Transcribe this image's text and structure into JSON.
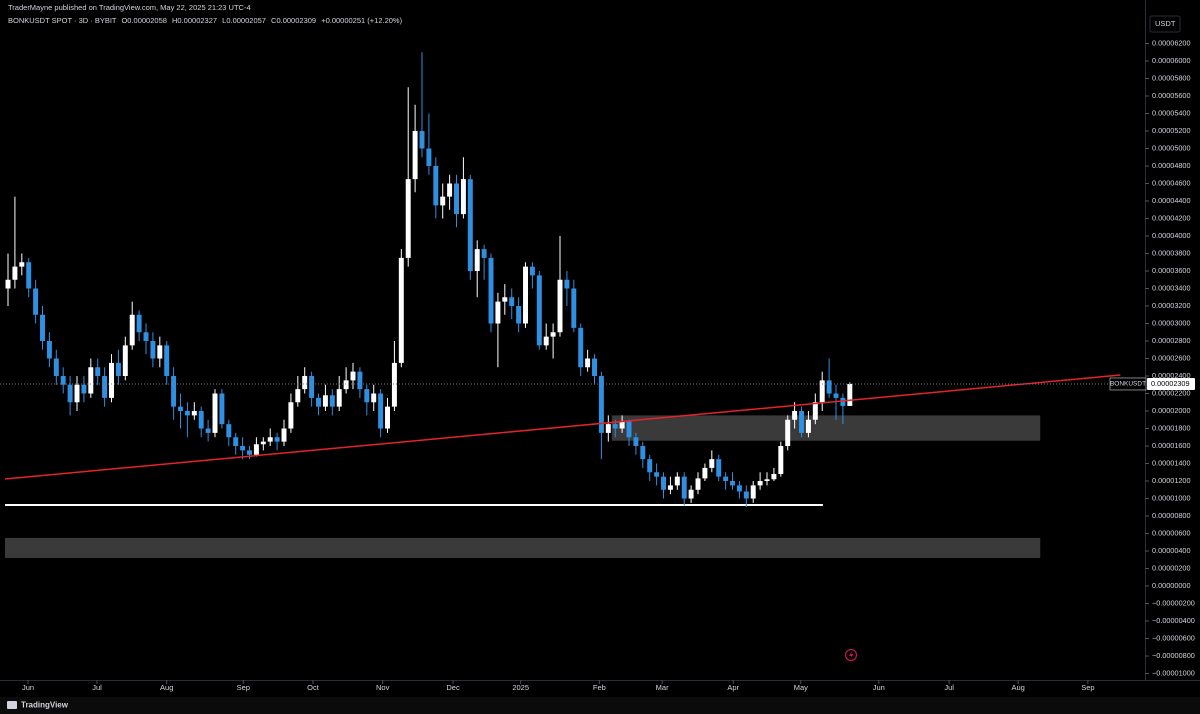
{
  "header": {
    "byline": "TraderMayne published on TradingView.com, May 22, 2025 21:23 UTC-4",
    "symbol": "BONKUSDT SPOT · 3D · BYBIT",
    "open": "O0.00002058",
    "high": "H0.00002327",
    "low": "L0.00002057",
    "close": "C0.00002309",
    "change": "+0.00000251 (+12.20%)"
  },
  "currency": "USDT",
  "footer": {
    "brand": "TradingView"
  },
  "chart_data": {
    "type": "candlestick",
    "up_color": "#ffffff",
    "down_color": "#2f8fe0",
    "symbol_label": "BONKUSDT",
    "last_price_label": "0.00002309",
    "last_price": 2.309e-05,
    "xlim": [
      -1.16,
      164.78
    ],
    "ylim": [
      -1.074e-05,
      6.697e-05
    ],
    "xticks": [
      {
        "value": 2.9,
        "label": "Jun"
      },
      {
        "value": 12.9,
        "label": "Jul"
      },
      {
        "value": 23.0,
        "label": "Aug"
      },
      {
        "value": 34.1,
        "label": "Sep"
      },
      {
        "value": 44.2,
        "label": "Oct"
      },
      {
        "value": 54.3,
        "label": "Nov"
      },
      {
        "value": 64.5,
        "label": "Dec"
      },
      {
        "value": 74.3,
        "label": "2025"
      },
      {
        "value": 85.7,
        "label": "Feb"
      },
      {
        "value": 94.8,
        "label": "Mar"
      },
      {
        "value": 105.1,
        "label": "Apr"
      },
      {
        "value": 114.9,
        "label": "May"
      },
      {
        "value": 126.2,
        "label": "Jun"
      },
      {
        "value": 136.4,
        "label": "Jul"
      },
      {
        "value": 146.4,
        "label": "Aug"
      },
      {
        "value": 156.5,
        "label": "Sep"
      }
    ],
    "yticks": [
      {
        "value": 6.2e-05,
        "label": "0.00006200"
      },
      {
        "value": 6e-05,
        "label": "0.00006000"
      },
      {
        "value": 5.8e-05,
        "label": "0.00005800"
      },
      {
        "value": 5.6e-05,
        "label": "0.00005600"
      },
      {
        "value": 5.4e-05,
        "label": "0.00005400"
      },
      {
        "value": 5.2e-05,
        "label": "0.00005200"
      },
      {
        "value": 5e-05,
        "label": "0.00005000"
      },
      {
        "value": 4.8e-05,
        "label": "0.00004800"
      },
      {
        "value": 4.6e-05,
        "label": "0.00004600"
      },
      {
        "value": 4.4e-05,
        "label": "0.00004400"
      },
      {
        "value": 4.2e-05,
        "label": "0.00004200"
      },
      {
        "value": 4e-05,
        "label": "0.00004000"
      },
      {
        "value": 3.8e-05,
        "label": "0.00003800"
      },
      {
        "value": 3.6e-05,
        "label": "0.00003600"
      },
      {
        "value": 3.4e-05,
        "label": "0.00003400"
      },
      {
        "value": 3.2e-05,
        "label": "0.00003200"
      },
      {
        "value": 3e-05,
        "label": "0.00003000"
      },
      {
        "value": 2.8e-05,
        "label": "0.00002800"
      },
      {
        "value": 2.6e-05,
        "label": "0.00002600"
      },
      {
        "value": 2.4e-05,
        "label": "0.00002400"
      },
      {
        "value": 2.2e-05,
        "label": "0.00002200"
      },
      {
        "value": 2e-05,
        "label": "0.00002000"
      },
      {
        "value": 1.8e-05,
        "label": "0.00001800"
      },
      {
        "value": 1.6e-05,
        "label": "0.00001600"
      },
      {
        "value": 1.4e-05,
        "label": "0.00001400"
      },
      {
        "value": 1.2e-05,
        "label": "0.00001200"
      },
      {
        "value": 1e-05,
        "label": "0.00001000"
      },
      {
        "value": 8e-06,
        "label": "0.00000800"
      },
      {
        "value": 6e-06,
        "label": "0.00000600"
      },
      {
        "value": 4e-06,
        "label": "0.00000400"
      },
      {
        "value": 2e-06,
        "label": "0.00000200"
      },
      {
        "value": 0,
        "label": "0.00000000"
      },
      {
        "value": -2e-06,
        "label": "−0.00000200"
      },
      {
        "value": -4e-06,
        "label": "−0.00000400"
      },
      {
        "value": -6e-06,
        "label": "−0.00000600"
      },
      {
        "value": -8e-06,
        "label": "−0.00000800"
      },
      {
        "value": -1e-05,
        "label": "−0.00001000"
      }
    ],
    "candles": [
      [
        3.4e-05,
        3.8e-05,
        3.2e-05,
        3.5e-05
      ],
      [
        3.5e-05,
        4.45e-05,
        3.4e-05,
        3.65e-05
      ],
      [
        3.65e-05,
        3.8e-05,
        3.55e-05,
        3.7e-05
      ],
      [
        3.7e-05,
        3.75e-05,
        3.3e-05,
        3.4e-05
      ],
      [
        3.4e-05,
        3.5e-05,
        3e-05,
        3.1e-05
      ],
      [
        3.1e-05,
        3.2e-05,
        2.7e-05,
        2.8e-05
      ],
      [
        2.8e-05,
        2.9e-05,
        2.5e-05,
        2.6e-05
      ],
      [
        2.6e-05,
        2.7e-05,
        2.3e-05,
        2.4e-05
      ],
      [
        2.4e-05,
        2.5e-05,
        2.2e-05,
        2.3e-05
      ],
      [
        2.3e-05,
        2.4e-05,
        1.95e-05,
        2.1e-05
      ],
      [
        2.1e-05,
        2.4e-05,
        2e-05,
        2.3e-05
      ],
      [
        2.3e-05,
        2.4e-05,
        2.1e-05,
        2.2e-05
      ],
      [
        2.2e-05,
        2.6e-05,
        2.15e-05,
        2.5e-05
      ],
      [
        2.5e-05,
        2.6e-05,
        2.3e-05,
        2.4e-05
      ],
      [
        2.4e-05,
        2.5e-05,
        2.05e-05,
        2.15e-05
      ],
      [
        2.15e-05,
        2.65e-05,
        2.1e-05,
        2.55e-05
      ],
      [
        2.55e-05,
        2.7e-05,
        2.3e-05,
        2.4e-05
      ],
      [
        2.4e-05,
        2.85e-05,
        2.35e-05,
        2.75e-05
      ],
      [
        2.75e-05,
        3.25e-05,
        2.7e-05,
        3.1e-05
      ],
      [
        3.1e-05,
        3.15e-05,
        2.8e-05,
        2.9e-05
      ],
      [
        2.9e-05,
        3e-05,
        2.65e-05,
        2.8e-05
      ],
      [
        2.8e-05,
        2.9e-05,
        2.5e-05,
        2.6e-05
      ],
      [
        2.6e-05,
        2.85e-05,
        2.5e-05,
        2.75e-05
      ],
      [
        2.75e-05,
        2.8e-05,
        2.3e-05,
        2.4e-05
      ],
      [
        2.4e-05,
        2.5e-05,
        1.9e-05,
        2.05e-05
      ],
      [
        2.05e-05,
        2.2e-05,
        1.8e-05,
        2e-05
      ],
      [
        2e-05,
        2.1e-05,
        1.7e-05,
        1.95e-05
      ],
      [
        1.95e-05,
        2.1e-05,
        1.9e-05,
        2e-05
      ],
      [
        2e-05,
        2.05e-05,
        1.7e-05,
        1.8e-05
      ],
      [
        1.8e-05,
        1.9e-05,
        1.65e-05,
        1.75e-05
      ],
      [
        1.75e-05,
        2.25e-05,
        1.7e-05,
        2.2e-05
      ],
      [
        2.2e-05,
        2.25e-05,
        1.8e-05,
        1.85e-05
      ],
      [
        1.85e-05,
        1.9e-05,
        1.6e-05,
        1.7e-05
      ],
      [
        1.7e-05,
        1.75e-05,
        1.5e-05,
        1.6e-05
      ],
      [
        1.6e-05,
        1.7e-05,
        1.45e-05,
        1.55e-05
      ],
      [
        1.55e-05,
        1.6e-05,
        1.45e-05,
        1.5e-05
      ],
      [
        1.5e-05,
        1.7e-05,
        1.48e-05,
        1.62e-05
      ],
      [
        1.62e-05,
        1.7e-05,
        1.55e-05,
        1.65e-05
      ],
      [
        1.65e-05,
        1.8e-05,
        1.6e-05,
        1.7e-05
      ],
      [
        1.7e-05,
        1.75e-05,
        1.55e-05,
        1.65e-05
      ],
      [
        1.65e-05,
        1.9e-05,
        1.6e-05,
        1.8e-05
      ],
      [
        1.8e-05,
        2.2e-05,
        1.75e-05,
        2.1e-05
      ],
      [
        2.1e-05,
        2.4e-05,
        2.05e-05,
        2.25e-05
      ],
      [
        2.25e-05,
        2.5e-05,
        2.2e-05,
        2.4e-05
      ],
      [
        2.4e-05,
        2.45e-05,
        2.05e-05,
        2.15e-05
      ],
      [
        2.15e-05,
        2.2e-05,
        1.95e-05,
        2.05e-05
      ],
      [
        2.05e-05,
        2.3e-05,
        2e-05,
        2.18e-05
      ],
      [
        2.18e-05,
        2.25e-05,
        1.95e-05,
        2.05e-05
      ],
      [
        2.05e-05,
        2.4e-05,
        2e-05,
        2.25e-05
      ],
      [
        2.25e-05,
        2.5e-05,
        2.2e-05,
        2.35e-05
      ],
      [
        2.35e-05,
        2.55e-05,
        2.25e-05,
        2.45e-05
      ],
      [
        2.45e-05,
        2.5e-05,
        2.15e-05,
        2.25e-05
      ],
      [
        2.25e-05,
        2.3e-05,
        1.95e-05,
        2.1e-05
      ],
      [
        2.1e-05,
        2.3e-05,
        2e-05,
        2.2e-05
      ],
      [
        2.2e-05,
        2.25e-05,
        1.7e-05,
        1.8e-05
      ],
      [
        1.8e-05,
        2.15e-05,
        1.75e-05,
        2.05e-05
      ],
      [
        2.05e-05,
        2.8e-05,
        2e-05,
        2.55e-05
      ],
      [
        2.55e-05,
        3.85e-05,
        2.5e-05,
        3.75e-05
      ],
      [
        3.75e-05,
        5.7e-05,
        3.65e-05,
        4.65e-05
      ],
      [
        4.65e-05,
        5.5e-05,
        4.5e-05,
        5.2e-05
      ],
      [
        5.2e-05,
        6.1e-05,
        4.9e-05,
        5e-05
      ],
      [
        5e-05,
        5.4e-05,
        4.7e-05,
        4.8e-05
      ],
      [
        4.8e-05,
        4.9e-05,
        4.2e-05,
        4.35e-05
      ],
      [
        4.35e-05,
        4.6e-05,
        4.2e-05,
        4.45e-05
      ],
      [
        4.45e-05,
        4.7e-05,
        4.3e-05,
        4.6e-05
      ],
      [
        4.6e-05,
        4.7e-05,
        4.1e-05,
        4.25e-05
      ],
      [
        4.25e-05,
        4.9e-05,
        4.2e-05,
        4.65e-05
      ],
      [
        4.65e-05,
        4.7e-05,
        3.5e-05,
        3.6e-05
      ],
      [
        3.6e-05,
        3.95e-05,
        3.3e-05,
        3.85e-05
      ],
      [
        3.85e-05,
        3.9e-05,
        3.5e-05,
        3.75e-05
      ],
      [
        3.75e-05,
        3.8e-05,
        2.9e-05,
        3e-05
      ],
      [
        3e-05,
        3.35e-05,
        2.5e-05,
        3.25e-05
      ],
      [
        3.25e-05,
        3.45e-05,
        3.1e-05,
        3.3e-05
      ],
      [
        3.3e-05,
        3.4e-05,
        3.05e-05,
        3.2e-05
      ],
      [
        3.2e-05,
        3.3e-05,
        2.9e-05,
        3e-05
      ],
      [
        3e-05,
        3.7e-05,
        2.95e-05,
        3.65e-05
      ],
      [
        3.65e-05,
        3.7e-05,
        3.4e-05,
        3.55e-05
      ],
      [
        3.55e-05,
        3.6e-05,
        2.7e-05,
        2.75e-05
      ],
      [
        2.75e-05,
        3e-05,
        2.7e-05,
        2.85e-05
      ],
      [
        2.85e-05,
        3e-05,
        2.6e-05,
        2.9e-05
      ],
      [
        2.9e-05,
        4e-05,
        2.85e-05,
        3.5e-05
      ],
      [
        3.5e-05,
        3.6e-05,
        3.2e-05,
        3.4e-05
      ],
      [
        3.4e-05,
        3.5e-05,
        2.9e-05,
        2.95e-05
      ],
      [
        2.95e-05,
        3e-05,
        2.4e-05,
        2.5e-05
      ],
      [
        2.5e-05,
        2.7e-05,
        2.45e-05,
        2.6e-05
      ],
      [
        2.6e-05,
        2.65e-05,
        2.3e-05,
        2.4e-05
      ],
      [
        2.4e-05,
        2.45e-05,
        1.45e-05,
        1.75e-05
      ],
      [
        1.75e-05,
        1.95e-05,
        1.65e-05,
        1.85e-05
      ],
      [
        1.85e-05,
        1.9e-05,
        1.7e-05,
        1.8e-05
      ],
      [
        1.8e-05,
        1.95e-05,
        1.75e-05,
        1.88e-05
      ],
      [
        1.88e-05,
        1.9e-05,
        1.6e-05,
        1.7e-05
      ],
      [
        1.7e-05,
        1.75e-05,
        1.5e-05,
        1.6e-05
      ],
      [
        1.6e-05,
        1.65e-05,
        1.35e-05,
        1.45e-05
      ],
      [
        1.45e-05,
        1.5e-05,
        1.2e-05,
        1.3e-05
      ],
      [
        1.3e-05,
        1.4e-05,
        1.15e-05,
        1.25e-05
      ],
      [
        1.25e-05,
        1.3e-05,
        1e-05,
        1.1e-05
      ],
      [
        1.1e-05,
        1.25e-05,
        1.05e-05,
        1.15e-05
      ],
      [
        1.15e-05,
        1.3e-05,
        1.1e-05,
        1.25e-05
      ],
      [
        1.25e-05,
        1.3e-05,
        9.2e-06,
        1e-05
      ],
      [
        1e-05,
        1.15e-05,
        9.5e-06,
        1.1e-05
      ],
      [
        1.1e-05,
        1.3e-05,
        1.05e-05,
        1.23e-05
      ],
      [
        1.23e-05,
        1.4e-05,
        1.2e-05,
        1.35e-05
      ],
      [
        1.35e-05,
        1.55e-05,
        1.3e-05,
        1.45e-05
      ],
      [
        1.45e-05,
        1.5e-05,
        1.2e-05,
        1.25e-05
      ],
      [
        1.25e-05,
        1.3e-05,
        1.1e-05,
        1.2e-05
      ],
      [
        1.2e-05,
        1.3e-05,
        1.1e-05,
        1.15e-05
      ],
      [
        1.15e-05,
        1.2e-05,
        1e-05,
        1.08e-05
      ],
      [
        1.08e-05,
        1.15e-05,
        9e-06,
        1e-05
      ],
      [
        1e-05,
        1.2e-05,
        9.5e-06,
        1.15e-05
      ],
      [
        1.15e-05,
        1.3e-05,
        1.1e-05,
        1.2e-05
      ],
      [
        1.2e-05,
        1.3e-05,
        1.15e-05,
        1.22e-05
      ],
      [
        1.22e-05,
        1.35e-05,
        1.2e-05,
        1.28e-05
      ],
      [
        1.28e-05,
        1.65e-05,
        1.25e-05,
        1.6e-05
      ],
      [
        1.6e-05,
        1.95e-05,
        1.55e-05,
        1.9e-05
      ],
      [
        1.9e-05,
        2.1e-05,
        1.8e-05,
        2e-05
      ],
      [
        2e-05,
        2.05e-05,
        1.7e-05,
        1.75e-05
      ],
      [
        1.75e-05,
        2e-05,
        1.7e-05,
        1.9e-05
      ],
      [
        1.9e-05,
        2.2e-05,
        1.85e-05,
        2.1e-05
      ],
      [
        2.1e-05,
        2.45e-05,
        2e-05,
        2.35e-05
      ],
      [
        2.35e-05,
        2.6e-05,
        2.15e-05,
        2.2e-05
      ],
      [
        2.2e-05,
        2.3e-05,
        1.9e-05,
        2.15e-05
      ],
      [
        2.15e-05,
        2.2e-05,
        1.85e-05,
        2.058e-05
      ],
      [
        2.058e-05,
        2.327e-05,
        2.057e-05,
        2.309e-05
      ]
    ],
    "trendline": {
      "color": "#e3242b",
      "x": [
        -0.43,
        161.2
      ],
      "y": [
        1.223e-05,
        2.411e-05
      ]
    },
    "hline": {
      "color": "#ffffff",
      "x": [
        -0.43,
        118.1
      ],
      "y": 9.26e-06
    },
    "zones": [
      {
        "color": "#3a3a3a",
        "x": [
          87.5,
          149.6
        ],
        "y": [
          1.66e-05,
          1.95e-05
        ]
      },
      {
        "color": "#3a3a3a",
        "x": [
          -0.43,
          149.6
        ],
        "y": [
          3.2e-06,
          5.5e-06
        ]
      }
    ]
  }
}
